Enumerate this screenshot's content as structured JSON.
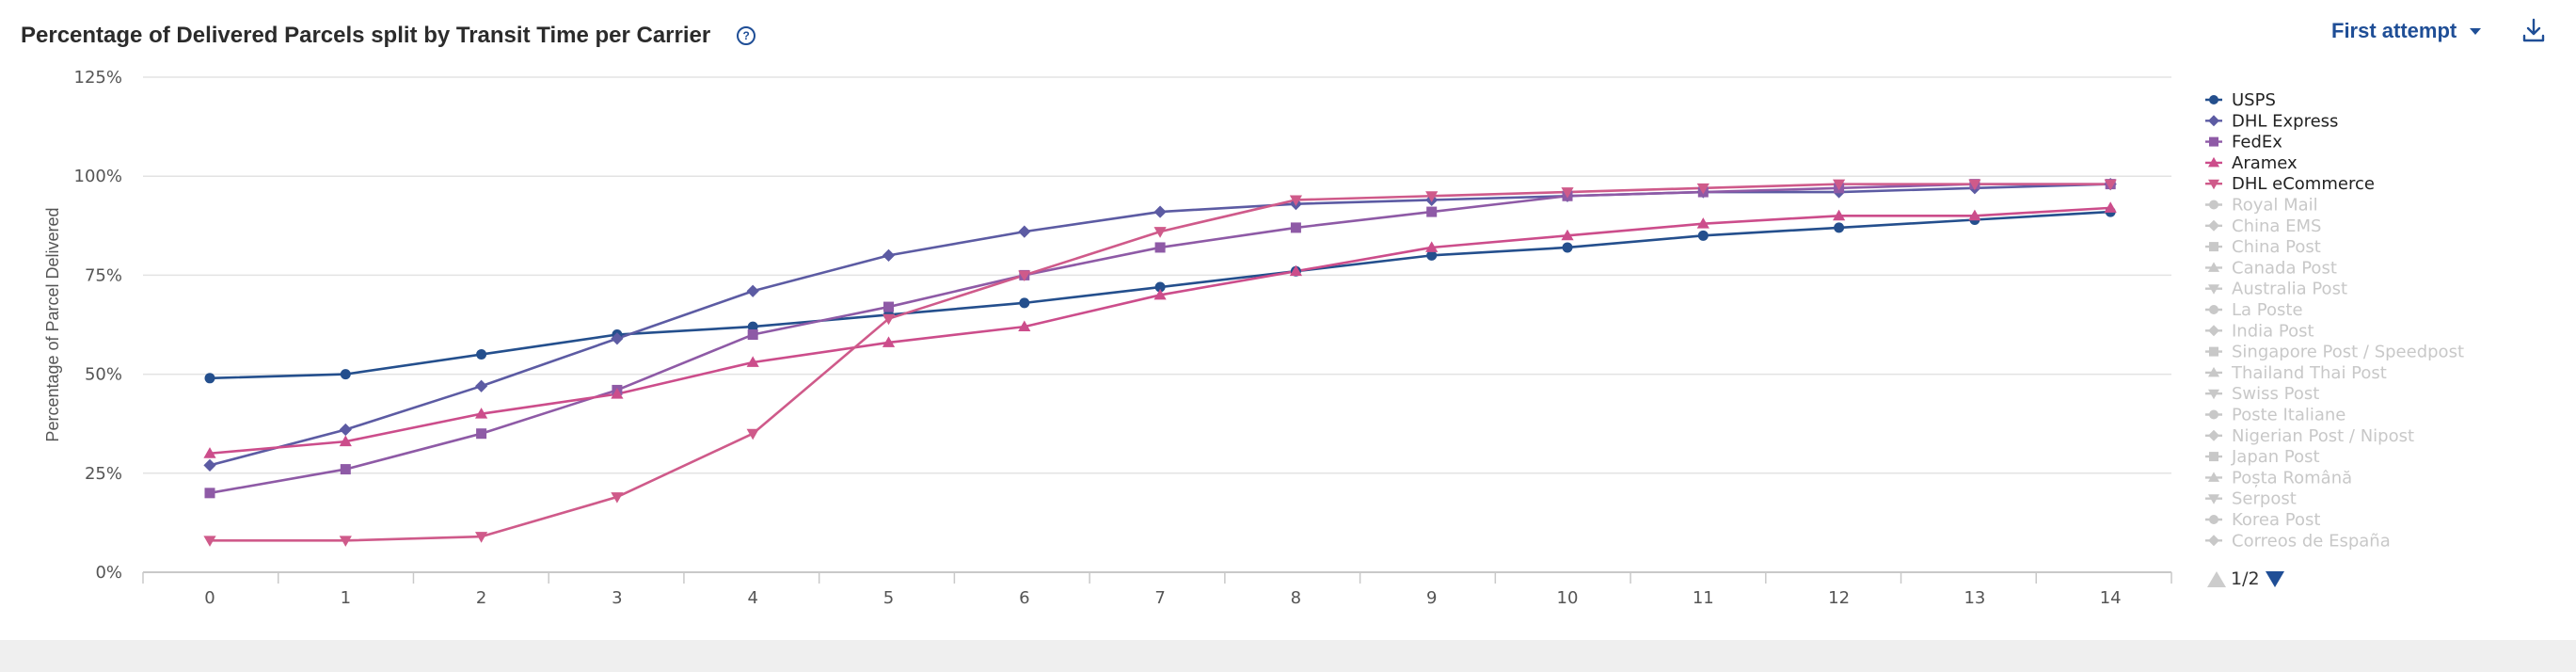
{
  "header": {
    "title": "Percentage of Delivered Parcels split by Transit Time per Carrier",
    "help_icon": "help-circle-icon",
    "attempt_label": "First attempt",
    "download_icon": "download-icon"
  },
  "pager": {
    "label": "1/2"
  },
  "chart_data": {
    "type": "line",
    "xlabel": "",
    "ylabel": "Percentage of Parcel Delivered",
    "x": [
      0,
      1,
      2,
      3,
      4,
      5,
      6,
      7,
      8,
      9,
      10,
      11,
      12,
      13,
      14
    ],
    "ylim": [
      0,
      125
    ],
    "yticks": [
      "0%",
      "25%",
      "50%",
      "75%",
      "100%",
      "125%"
    ],
    "grid": true,
    "legend_position": "right",
    "series": [
      {
        "name": "USPS",
        "color": "#244f8d",
        "marker": "circle",
        "visible": true,
        "values": [
          49,
          50,
          55,
          60,
          62,
          65,
          68,
          72,
          76,
          80,
          82,
          85,
          87,
          89,
          91
        ]
      },
      {
        "name": "DHL Express",
        "color": "#5c5ba3",
        "marker": "diamond",
        "visible": true,
        "values": [
          27,
          36,
          47,
          59,
          71,
          80,
          86,
          91,
          93,
          94,
          95,
          96,
          96,
          97,
          98
        ]
      },
      {
        "name": "FedEx",
        "color": "#8e5aa6",
        "marker": "square",
        "visible": true,
        "values": [
          20,
          26,
          35,
          46,
          60,
          67,
          75,
          82,
          87,
          91,
          95,
          96,
          97,
          98,
          98
        ]
      },
      {
        "name": "Aramex",
        "color": "#cc4d8b",
        "marker": "triangle",
        "visible": true,
        "values": [
          30,
          33,
          40,
          45,
          53,
          58,
          62,
          70,
          76,
          82,
          85,
          88,
          90,
          90,
          92
        ]
      },
      {
        "name": "DHL eCommerce",
        "color": "#cf5a8a",
        "marker": "triangle-down",
        "visible": true,
        "values": [
          8,
          8,
          9,
          19,
          35,
          64,
          75,
          86,
          94,
          95,
          96,
          97,
          98,
          98,
          98
        ]
      }
    ],
    "hidden_legend": [
      {
        "name": "Royal Mail",
        "marker": "circle"
      },
      {
        "name": "China EMS",
        "marker": "diamond"
      },
      {
        "name": "China Post",
        "marker": "square"
      },
      {
        "name": "Canada Post",
        "marker": "triangle"
      },
      {
        "name": "Australia Post",
        "marker": "triangle-down"
      },
      {
        "name": "La Poste",
        "marker": "circle"
      },
      {
        "name": "India Post",
        "marker": "diamond"
      },
      {
        "name": "Singapore Post / Speedpost",
        "marker": "square"
      },
      {
        "name": "Thailand Thai Post",
        "marker": "triangle"
      },
      {
        "name": "Swiss Post",
        "marker": "triangle-down"
      },
      {
        "name": "Poste Italiane",
        "marker": "circle"
      },
      {
        "name": "Nigerian Post / Nipost",
        "marker": "diamond"
      },
      {
        "name": "Japan Post",
        "marker": "square"
      },
      {
        "name": "Poșta Română",
        "marker": "triangle"
      },
      {
        "name": "Serpost",
        "marker": "triangle-down"
      },
      {
        "name": "Korea Post",
        "marker": "circle"
      },
      {
        "name": "Correos de España",
        "marker": "diamond"
      }
    ],
    "hidden_color": "#c8c8c8"
  }
}
